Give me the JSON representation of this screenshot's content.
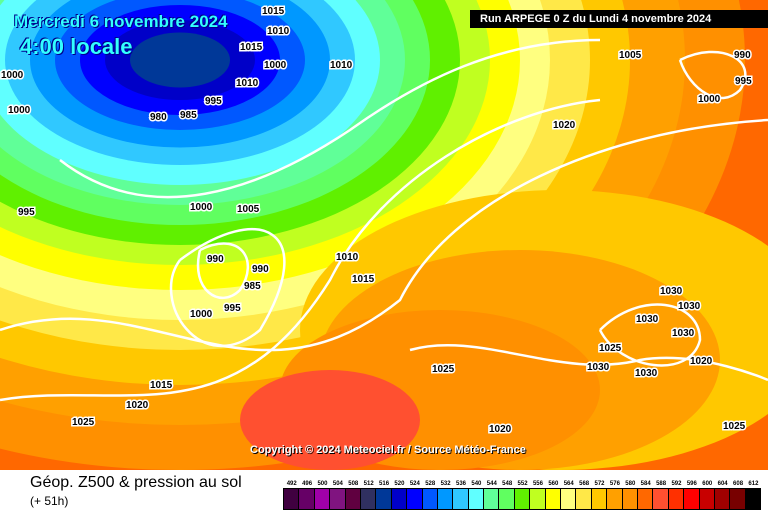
{
  "header": {
    "date": "Mercredi 6 novembre 2024",
    "hour": "4:00 locale",
    "run": "Run ARPEGE 0 Z du Lundi 4 novembre 2024"
  },
  "copyright": "Copyright © 2024 Meteociel.fr / Source Météo-France",
  "footer": {
    "title": "Géop. Z500 & pression au sol",
    "subtitle": "(+ 51h)"
  },
  "legend": {
    "values": [
      "492",
      "496",
      "500",
      "504",
      "508",
      "512",
      "516",
      "520",
      "524",
      "528",
      "532",
      "536",
      "540",
      "544",
      "548",
      "552",
      "556",
      "560",
      "564",
      "568",
      "572",
      "576",
      "580",
      "584",
      "588",
      "592",
      "596",
      "600",
      "604",
      "608",
      "612"
    ],
    "colors": [
      "#400040",
      "#660066",
      "#a000a8",
      "#801480",
      "#600040",
      "#303060",
      "#003898",
      "#0000c8",
      "#0000ff",
      "#0058ff",
      "#0098ff",
      "#30c8ff",
      "#60ffff",
      "#60ff98",
      "#60ff60",
      "#60f000",
      "#c0ff20",
      "#ffff00",
      "#ffff80",
      "#ffe848",
      "#ffc800",
      "#ffa000",
      "#ff9000",
      "#ff6800",
      "#ff5030",
      "#ff3000",
      "#ff0000",
      "#c80000",
      "#a00000",
      "#780000",
      "#000000"
    ]
  },
  "isobars": [
    "1000",
    "1015",
    "1010",
    "1015",
    "1010",
    "1000",
    "1010",
    "995",
    "980",
    "985",
    "1000",
    "1005",
    "995",
    "990",
    "990",
    "985",
    "1000",
    "995",
    "1010",
    "1015",
    "1015",
    "1020",
    "1025",
    "1020",
    "1005",
    "995",
    "990",
    "1000",
    "1020",
    "1030",
    "1030",
    "1030",
    "1030",
    "1025",
    "1025",
    "1030",
    "1030",
    "1020",
    "1025",
    "1000"
  ]
}
